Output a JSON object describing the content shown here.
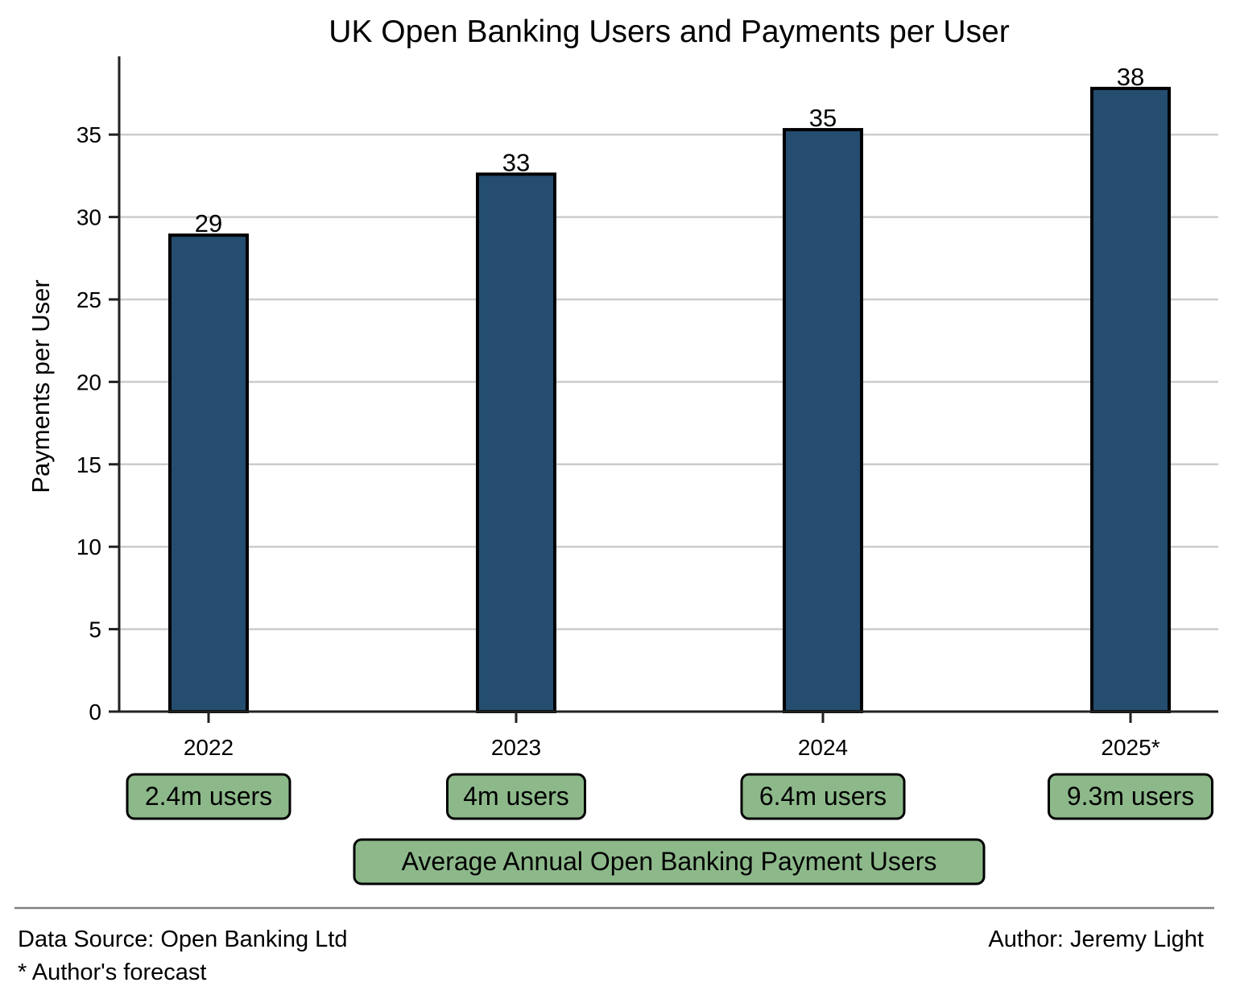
{
  "chart_data": {
    "type": "bar",
    "title": "UK Open Banking Users and Payments per User",
    "xlabel": "",
    "ylabel": "Payments per User",
    "categories": [
      "2022",
      "2023",
      "2024",
      "2025*"
    ],
    "values": [
      28.9,
      32.6,
      35.3,
      37.8
    ],
    "data_labels": [
      "29",
      "33",
      "35",
      "38"
    ],
    "ylim": [
      0,
      40
    ],
    "yticks": [
      0,
      5,
      10,
      15,
      20,
      25,
      30,
      35
    ],
    "grid": "horizontal",
    "bar_color": "#244d6f",
    "user_labels": [
      "2.4m users",
      "4m users",
      "6.4m users",
      "9.3m users"
    ],
    "user_box_color": "#8db98a",
    "users_caption": "Average Annual Open Banking Payment Users"
  },
  "footer": {
    "source": "Data Source: Open Banking Ltd",
    "note": "* Author's forecast",
    "author": "Author: Jeremy Light"
  }
}
